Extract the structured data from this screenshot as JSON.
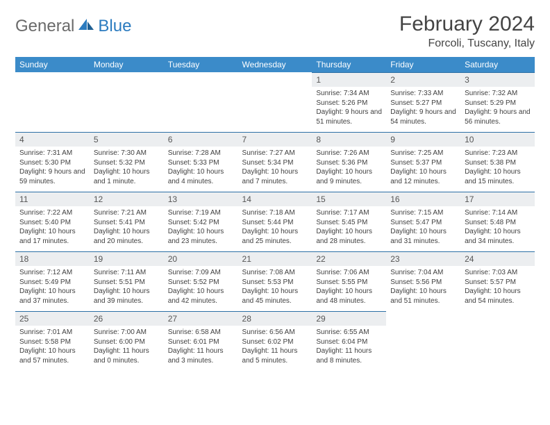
{
  "brand": {
    "general": "General",
    "blue": "Blue"
  },
  "title": "February 2024",
  "location": "Forcoli, Tuscany, Italy",
  "colors": {
    "header_bg": "#3b8bc9",
    "header_text": "#ffffff",
    "daynum_bg": "#eceef0",
    "rule": "#2b6fa5",
    "logo_gray": "#6a6a6a",
    "logo_blue": "#2b7bbf"
  },
  "weekdays": [
    "Sunday",
    "Monday",
    "Tuesday",
    "Wednesday",
    "Thursday",
    "Friday",
    "Saturday"
  ],
  "weeks": [
    [
      null,
      null,
      null,
      null,
      {
        "n": "1",
        "sr": "Sunrise: 7:34 AM",
        "ss": "Sunset: 5:26 PM",
        "dl": "Daylight: 9 hours and 51 minutes."
      },
      {
        "n": "2",
        "sr": "Sunrise: 7:33 AM",
        "ss": "Sunset: 5:27 PM",
        "dl": "Daylight: 9 hours and 54 minutes."
      },
      {
        "n": "3",
        "sr": "Sunrise: 7:32 AM",
        "ss": "Sunset: 5:29 PM",
        "dl": "Daylight: 9 hours and 56 minutes."
      }
    ],
    [
      {
        "n": "4",
        "sr": "Sunrise: 7:31 AM",
        "ss": "Sunset: 5:30 PM",
        "dl": "Daylight: 9 hours and 59 minutes."
      },
      {
        "n": "5",
        "sr": "Sunrise: 7:30 AM",
        "ss": "Sunset: 5:32 PM",
        "dl": "Daylight: 10 hours and 1 minute."
      },
      {
        "n": "6",
        "sr": "Sunrise: 7:28 AM",
        "ss": "Sunset: 5:33 PM",
        "dl": "Daylight: 10 hours and 4 minutes."
      },
      {
        "n": "7",
        "sr": "Sunrise: 7:27 AM",
        "ss": "Sunset: 5:34 PM",
        "dl": "Daylight: 10 hours and 7 minutes."
      },
      {
        "n": "8",
        "sr": "Sunrise: 7:26 AM",
        "ss": "Sunset: 5:36 PM",
        "dl": "Daylight: 10 hours and 9 minutes."
      },
      {
        "n": "9",
        "sr": "Sunrise: 7:25 AM",
        "ss": "Sunset: 5:37 PM",
        "dl": "Daylight: 10 hours and 12 minutes."
      },
      {
        "n": "10",
        "sr": "Sunrise: 7:23 AM",
        "ss": "Sunset: 5:38 PM",
        "dl": "Daylight: 10 hours and 15 minutes."
      }
    ],
    [
      {
        "n": "11",
        "sr": "Sunrise: 7:22 AM",
        "ss": "Sunset: 5:40 PM",
        "dl": "Daylight: 10 hours and 17 minutes."
      },
      {
        "n": "12",
        "sr": "Sunrise: 7:21 AM",
        "ss": "Sunset: 5:41 PM",
        "dl": "Daylight: 10 hours and 20 minutes."
      },
      {
        "n": "13",
        "sr": "Sunrise: 7:19 AM",
        "ss": "Sunset: 5:42 PM",
        "dl": "Daylight: 10 hours and 23 minutes."
      },
      {
        "n": "14",
        "sr": "Sunrise: 7:18 AM",
        "ss": "Sunset: 5:44 PM",
        "dl": "Daylight: 10 hours and 25 minutes."
      },
      {
        "n": "15",
        "sr": "Sunrise: 7:17 AM",
        "ss": "Sunset: 5:45 PM",
        "dl": "Daylight: 10 hours and 28 minutes."
      },
      {
        "n": "16",
        "sr": "Sunrise: 7:15 AM",
        "ss": "Sunset: 5:47 PM",
        "dl": "Daylight: 10 hours and 31 minutes."
      },
      {
        "n": "17",
        "sr": "Sunrise: 7:14 AM",
        "ss": "Sunset: 5:48 PM",
        "dl": "Daylight: 10 hours and 34 minutes."
      }
    ],
    [
      {
        "n": "18",
        "sr": "Sunrise: 7:12 AM",
        "ss": "Sunset: 5:49 PM",
        "dl": "Daylight: 10 hours and 37 minutes."
      },
      {
        "n": "19",
        "sr": "Sunrise: 7:11 AM",
        "ss": "Sunset: 5:51 PM",
        "dl": "Daylight: 10 hours and 39 minutes."
      },
      {
        "n": "20",
        "sr": "Sunrise: 7:09 AM",
        "ss": "Sunset: 5:52 PM",
        "dl": "Daylight: 10 hours and 42 minutes."
      },
      {
        "n": "21",
        "sr": "Sunrise: 7:08 AM",
        "ss": "Sunset: 5:53 PM",
        "dl": "Daylight: 10 hours and 45 minutes."
      },
      {
        "n": "22",
        "sr": "Sunrise: 7:06 AM",
        "ss": "Sunset: 5:55 PM",
        "dl": "Daylight: 10 hours and 48 minutes."
      },
      {
        "n": "23",
        "sr": "Sunrise: 7:04 AM",
        "ss": "Sunset: 5:56 PM",
        "dl": "Daylight: 10 hours and 51 minutes."
      },
      {
        "n": "24",
        "sr": "Sunrise: 7:03 AM",
        "ss": "Sunset: 5:57 PM",
        "dl": "Daylight: 10 hours and 54 minutes."
      }
    ],
    [
      {
        "n": "25",
        "sr": "Sunrise: 7:01 AM",
        "ss": "Sunset: 5:58 PM",
        "dl": "Daylight: 10 hours and 57 minutes."
      },
      {
        "n": "26",
        "sr": "Sunrise: 7:00 AM",
        "ss": "Sunset: 6:00 PM",
        "dl": "Daylight: 11 hours and 0 minutes."
      },
      {
        "n": "27",
        "sr": "Sunrise: 6:58 AM",
        "ss": "Sunset: 6:01 PM",
        "dl": "Daylight: 11 hours and 3 minutes."
      },
      {
        "n": "28",
        "sr": "Sunrise: 6:56 AM",
        "ss": "Sunset: 6:02 PM",
        "dl": "Daylight: 11 hours and 5 minutes."
      },
      {
        "n": "29",
        "sr": "Sunrise: 6:55 AM",
        "ss": "Sunset: 6:04 PM",
        "dl": "Daylight: 11 hours and 8 minutes."
      },
      null,
      null
    ]
  ]
}
